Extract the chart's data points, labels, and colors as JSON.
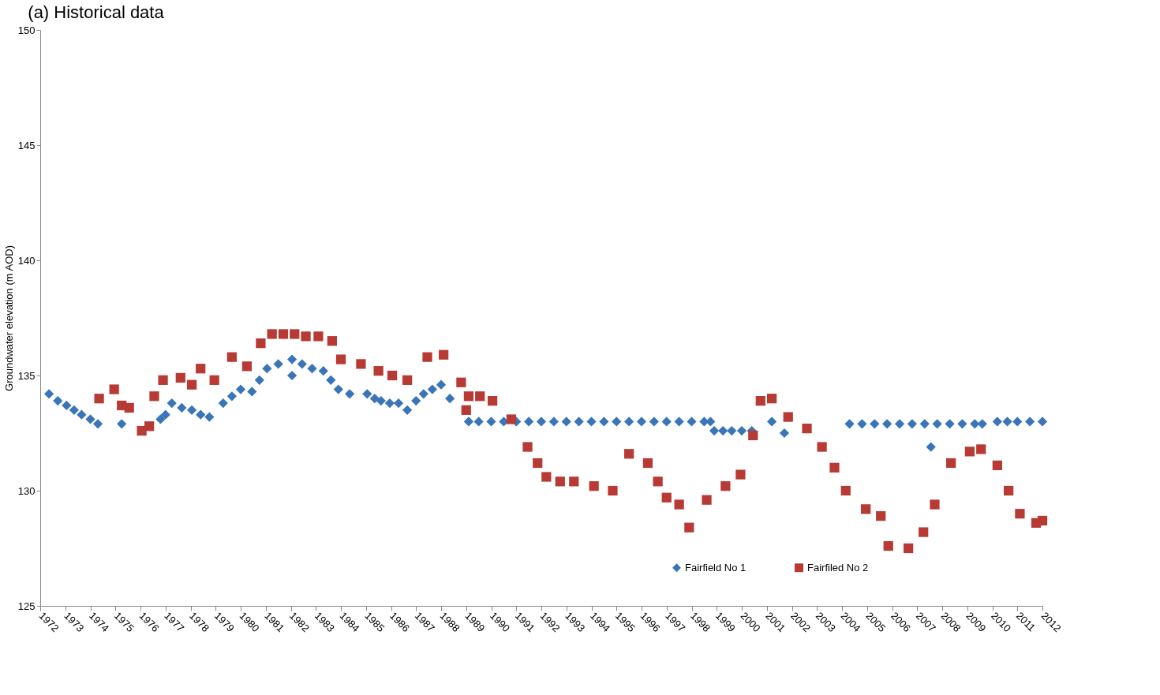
{
  "chart_data": {
    "type": "scatter",
    "title": "(a) Historical data",
    "ylabel": "Groundwater elevation (m AOD)",
    "xlim": [
      1972,
      2012
    ],
    "xticks": [
      1972,
      1973,
      1974,
      1975,
      1976,
      1977,
      1978,
      1979,
      1980,
      1981,
      1982,
      1983,
      1984,
      1985,
      1986,
      1987,
      1988,
      1989,
      1990,
      1991,
      1992,
      1993,
      1994,
      1995,
      1996,
      1997,
      1998,
      1999,
      2000,
      2001,
      2002,
      2003,
      2004,
      2005,
      2006,
      2007,
      2008,
      2009,
      2010,
      2011,
      2012
    ],
    "ylim": [
      125,
      150
    ],
    "yticks": [
      125,
      130,
      135,
      140,
      145,
      150
    ],
    "grid": false,
    "legend": "bottom right",
    "series": [
      {
        "name": "Fairfield No 1",
        "color": "#3a75b8",
        "marker": "diamond",
        "x": [
          1972.35,
          1972.7,
          1973.05,
          1973.35,
          1973.65,
          1974.0,
          1974.3,
          1975.25,
          1976.8,
          1977.0,
          1977.25,
          1977.65,
          1978.05,
          1978.4,
          1978.75,
          1979.3,
          1979.65,
          1980.0,
          1980.45,
          1980.75,
          1981.05,
          1981.5,
          1982.05,
          1982.05,
          1982.45,
          1982.85,
          1983.3,
          1983.6,
          1983.9,
          1984.35,
          1985.05,
          1985.35,
          1985.6,
          1985.95,
          1986.3,
          1986.65,
          1987.0,
          1987.3,
          1987.65,
          1988.0,
          1988.35,
          1989.1,
          1989.5,
          1990.0,
          1990.5,
          1991.0,
          1991.5,
          1992.0,
          1992.5,
          1993.0,
          1993.5,
          1994.0,
          1994.5,
          1995.0,
          1995.5,
          1996.0,
          1996.5,
          1997.0,
          1997.5,
          1998.0,
          1998.5,
          1998.75,
          1998.9,
          1999.25,
          1999.6,
          2000.0,
          2000.4,
          2001.2,
          2001.7,
          2004.3,
          2004.8,
          2005.3,
          2005.8,
          2006.3,
          2006.8,
          2007.3,
          2007.55,
          2007.8,
          2008.3,
          2008.8,
          2009.3,
          2009.6,
          2010.2,
          2010.6,
          2011.0,
          2011.5,
          2012.0
        ],
        "values": [
          134.2,
          133.9,
          133.7,
          133.5,
          133.3,
          133.1,
          132.9,
          132.9,
          133.1,
          133.3,
          133.8,
          133.6,
          133.5,
          133.3,
          133.2,
          133.8,
          134.1,
          134.4,
          134.3,
          134.8,
          135.3,
          135.5,
          135.7,
          135.0,
          135.5,
          135.3,
          135.2,
          134.8,
          134.4,
          134.2,
          134.2,
          134.0,
          133.9,
          133.8,
          133.8,
          133.5,
          133.9,
          134.2,
          134.4,
          134.6,
          134.0,
          133.0,
          133.0,
          133.0,
          133.0,
          133.0,
          133.0,
          133.0,
          133.0,
          133.0,
          133.0,
          133.0,
          133.0,
          133.0,
          133.0,
          133.0,
          133.0,
          133.0,
          133.0,
          133.0,
          133.0,
          133.0,
          132.6,
          132.6,
          132.6,
          132.6,
          132.6,
          133.0,
          132.5,
          132.9,
          132.9,
          132.9,
          132.9,
          132.9,
          132.9,
          132.9,
          131.9,
          132.9,
          132.9,
          132.9,
          132.9,
          132.9,
          133.0,
          133.0,
          133.0,
          133.0,
          133.0
        ]
      },
      {
        "name": "Fairfiled No 2",
        "color": "#b83a34",
        "marker": "square",
        "x": [
          1974.35,
          1974.95,
          1975.25,
          1975.55,
          1976.05,
          1976.35,
          1976.55,
          1976.9,
          1977.6,
          1978.05,
          1978.4,
          1978.95,
          1979.65,
          1980.25,
          1980.8,
          1981.25,
          1981.7,
          1982.15,
          1982.6,
          1983.1,
          1983.65,
          1984.0,
          1984.8,
          1985.5,
          1986.05,
          1986.65,
          1987.45,
          1988.1,
          1988.8,
          1989.0,
          1989.1,
          1989.55,
          1990.05,
          1990.8,
          1991.45,
          1991.85,
          1992.2,
          1992.75,
          1993.3,
          1994.1,
          1994.85,
          1995.5,
          1996.25,
          1996.65,
          1997.0,
          1997.5,
          1997.9,
          1998.6,
          1999.35,
          1999.95,
          2000.45,
          2000.75,
          2001.2,
          2001.85,
          2002.6,
          2003.2,
          2003.7,
          2004.15,
          2004.95,
          2005.55,
          2005.85,
          2006.65,
          2007.25,
          2007.7,
          2008.35,
          2009.1,
          2009.55,
          2010.2,
          2010.65,
          2011.1,
          2011.75,
          2012.0
        ],
        "values": [
          134.0,
          134.4,
          133.7,
          133.6,
          132.6,
          132.8,
          134.1,
          134.8,
          134.9,
          134.6,
          135.3,
          134.8,
          135.8,
          135.4,
          136.4,
          136.8,
          136.8,
          136.8,
          136.7,
          136.7,
          136.5,
          135.7,
          135.5,
          135.2,
          135.0,
          134.8,
          135.8,
          135.9,
          134.7,
          133.5,
          134.1,
          134.1,
          133.9,
          133.1,
          131.9,
          131.2,
          130.6,
          130.4,
          130.4,
          130.2,
          130.0,
          131.6,
          131.2,
          130.4,
          129.7,
          129.4,
          128.4,
          129.6,
          130.2,
          130.7,
          132.4,
          133.9,
          134.0,
          133.2,
          132.7,
          131.9,
          131.0,
          130.0,
          129.2,
          128.9,
          127.6,
          127.5,
          128.2,
          129.4,
          131.2,
          131.7,
          131.8,
          131.1,
          130.0,
          129.0,
          128.6,
          128.7
        ]
      }
    ]
  }
}
